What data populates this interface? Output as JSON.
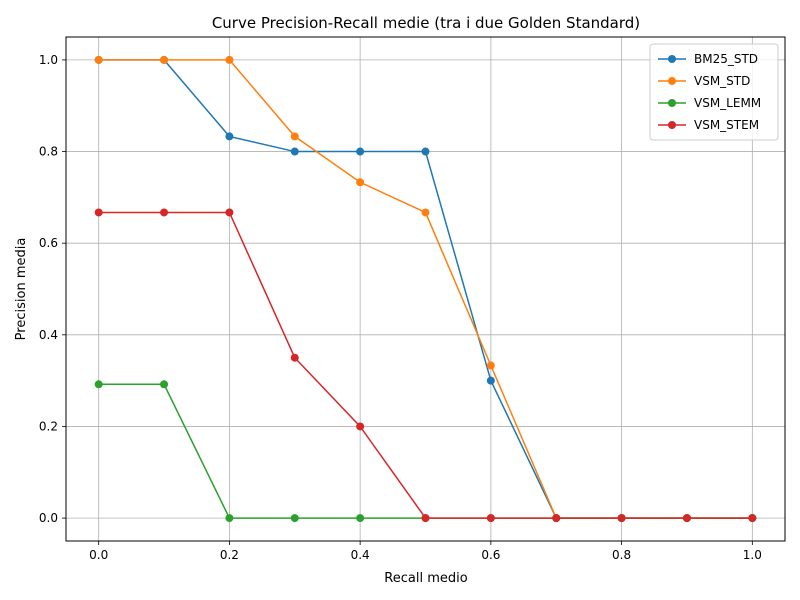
{
  "chart_data": {
    "type": "line",
    "title": "Curve Precision-Recall medie (tra i due Golden Standard)",
    "xlabel": "Recall medio",
    "ylabel": "Precision media",
    "xlim": [
      -0.05,
      1.05
    ],
    "ylim": [
      -0.05,
      1.05
    ],
    "x": [
      0.0,
      0.1,
      0.2,
      0.3,
      0.4,
      0.5,
      0.6,
      0.7,
      0.8,
      0.9,
      1.0
    ],
    "xticks": [
      "0.0",
      "0.2",
      "0.4",
      "0.6",
      "0.8",
      "1.0"
    ],
    "yticks": [
      "0.0",
      "0.2",
      "0.4",
      "0.6",
      "0.8",
      "1.0"
    ],
    "grid": true,
    "legend_position": "top-right",
    "series": [
      {
        "name": "BM25_STD",
        "color": "#1f77b4",
        "values": [
          1.0,
          1.0,
          0.833,
          0.8,
          0.8,
          0.8,
          0.3,
          0.0,
          0.0,
          0.0,
          0.0
        ]
      },
      {
        "name": "VSM_STD",
        "color": "#ff7f0e",
        "values": [
          1.0,
          1.0,
          1.0,
          0.833,
          0.733,
          0.667,
          0.333,
          0.0,
          0.0,
          0.0,
          0.0
        ]
      },
      {
        "name": "VSM_LEMM",
        "color": "#2ca02c",
        "values": [
          0.292,
          0.292,
          0.0,
          0.0,
          0.0,
          0.0,
          0.0,
          0.0,
          0.0,
          0.0,
          0.0
        ]
      },
      {
        "name": "VSM_STEM",
        "color": "#d62728",
        "values": [
          0.667,
          0.667,
          0.667,
          0.35,
          0.2,
          0.0,
          0.0,
          0.0,
          0.0,
          0.0,
          0.0
        ]
      }
    ]
  }
}
